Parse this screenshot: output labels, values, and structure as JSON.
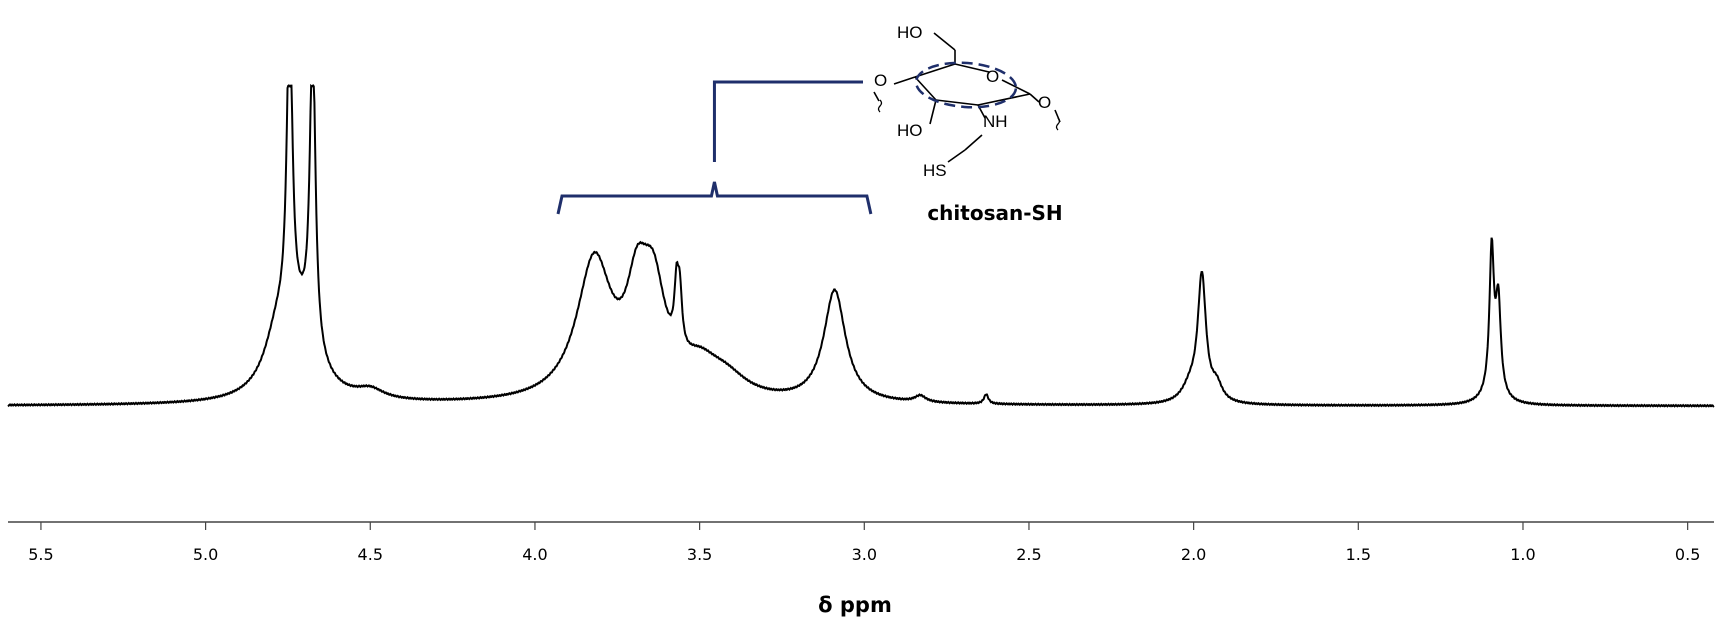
{
  "chart_data": {
    "type": "line",
    "title": "",
    "xlabel": "δ ppm",
    "ylabel": "",
    "xlim": [
      5.6,
      0.42
    ],
    "x_reversed": true,
    "grid": false,
    "ticks": [
      "5.5",
      "5.0",
      "4.5",
      "4.0",
      "3.5",
      "3.0",
      "2.5",
      "2.0",
      "1.5",
      "1.0",
      "0.5"
    ],
    "baseline_intensity": 0.0,
    "series": [
      {
        "peaks": [
          {
            "ppm": 4.78,
            "height": 0.18,
            "width": 0.05
          },
          {
            "ppm": 4.745,
            "height": 0.98,
            "width": 0.01
          },
          {
            "ppm": 4.675,
            "height": 0.98,
            "width": 0.01
          },
          {
            "ppm": 4.71,
            "height": 0.2,
            "width": 0.06
          },
          {
            "ppm": 4.5,
            "height": 0.03,
            "width": 0.05
          },
          {
            "ppm": 3.82,
            "height": 0.43,
            "width": 0.065
          },
          {
            "ppm": 3.69,
            "height": 0.26,
            "width": 0.04
          },
          {
            "ppm": 3.64,
            "height": 0.3,
            "width": 0.045
          },
          {
            "ppm": 3.57,
            "height": 0.18,
            "width": 0.008
          },
          {
            "ppm": 3.56,
            "height": 0.16,
            "width": 0.008
          },
          {
            "ppm": 3.5,
            "height": 0.09,
            "width": 0.07
          },
          {
            "ppm": 3.42,
            "height": 0.06,
            "width": 0.08
          },
          {
            "ppm": 3.09,
            "height": 0.35,
            "width": 0.04
          },
          {
            "ppm": 2.83,
            "height": 0.02,
            "width": 0.02
          },
          {
            "ppm": 2.63,
            "height": 0.03,
            "width": 0.008
          },
          {
            "ppm": 1.975,
            "height": 0.39,
            "width": 0.015
          },
          {
            "ppm": 1.93,
            "height": 0.05,
            "width": 0.02
          },
          {
            "ppm": 2.01,
            "height": 0.05,
            "width": 0.03
          },
          {
            "ppm": 1.095,
            "height": 0.43,
            "width": 0.008
          },
          {
            "ppm": 1.075,
            "height": 0.28,
            "width": 0.009
          },
          {
            "ppm": 1.09,
            "height": 0.05,
            "width": 0.03
          }
        ]
      }
    ],
    "annotations": [
      {
        "type": "bracket",
        "from_ppm": 3.93,
        "to_ppm": 2.98,
        "color": "#1f2f6b"
      }
    ]
  },
  "structure": {
    "name": "chitosan-SH",
    "labels": {
      "ho_top": "HO",
      "ring_o": "O",
      "left_o": "O",
      "right_o": "O",
      "ho_bottom": "HO",
      "nh": "NH",
      "hs": "HS"
    },
    "highlight_color": "#1f2f6b"
  }
}
